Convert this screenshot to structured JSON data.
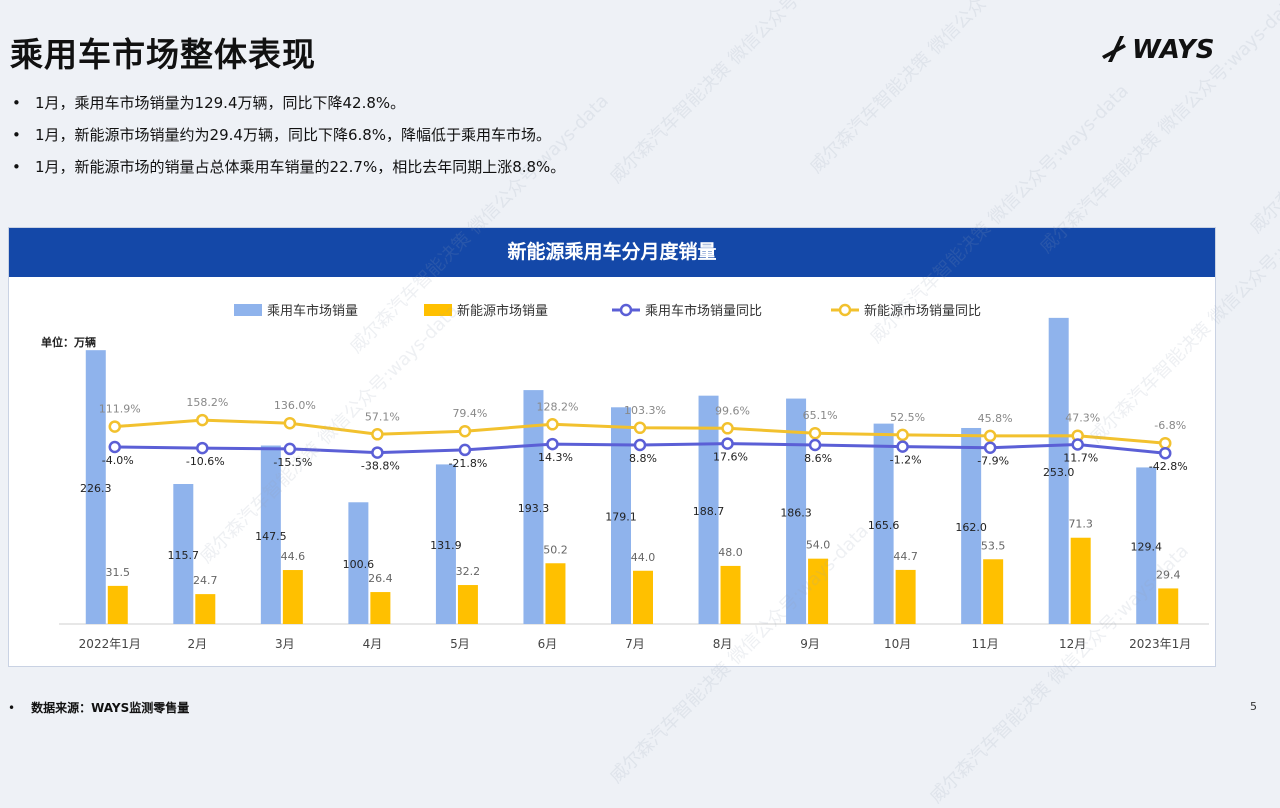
{
  "page": {
    "title": "乘用车市场整体表现",
    "logo_text": "WAYS",
    "page_number": "5",
    "bullets": [
      "1月，乘用车市场销量为129.4万辆，同比下降42.8%。",
      "1月，新能源市场销量约为29.4万辆，同比下降6.8%，降幅低于乘用车市场。",
      "1月，新能源市场的销量占总体乘用车销量的22.7%，相比去年同期上涨8.8%。"
    ],
    "source_label": "数据来源：WAYS监测零售量",
    "watermark_text": "威尔森汽车智能决策 微信公众号:ways-data"
  },
  "chart_data": {
    "type": "bar",
    "title": "新能源乘用车分月度销量",
    "unit_label": "单位：万辆",
    "categories": [
      "2022年1月",
      "2月",
      "3月",
      "4月",
      "5月",
      "6月",
      "7月",
      "8月",
      "9月",
      "10月",
      "11月",
      "12月",
      "2023年1月"
    ],
    "series": [
      {
        "name": "乘用车市场销量",
        "kind": "bar",
        "color": "#8fb3ec",
        "values": [
          226.3,
          115.7,
          147.5,
          100.6,
          131.9,
          193.3,
          179.1,
          188.7,
          186.3,
          165.6,
          162.0,
          253.0,
          129.4
        ]
      },
      {
        "name": "新能源市场销量",
        "kind": "bar",
        "color": "#ffc000",
        "values": [
          31.5,
          24.7,
          44.6,
          26.4,
          32.2,
          50.2,
          44.0,
          48.0,
          54.0,
          44.7,
          53.5,
          71.3,
          29.4
        ]
      },
      {
        "name": "乘用车市场销量同比",
        "kind": "line",
        "color": "#5b5fd6",
        "values": [
          -4.0,
          -10.6,
          -15.5,
          -38.8,
          -21.8,
          14.3,
          8.8,
          17.6,
          8.6,
          -1.2,
          -7.9,
          11.7,
          -42.8
        ]
      },
      {
        "name": "新能源市场销量同比",
        "kind": "line",
        "color": "#f2c12e",
        "values": [
          111.9,
          158.2,
          136.0,
          57.1,
          79.4,
          128.2,
          103.3,
          99.6,
          65.1,
          52.5,
          45.8,
          47.3,
          -6.8
        ]
      }
    ],
    "legend_position": "top",
    "grid": false
  }
}
